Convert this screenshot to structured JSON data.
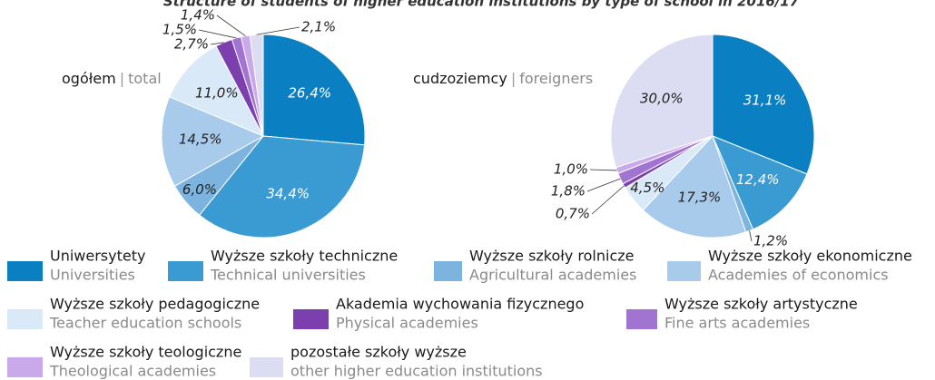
{
  "chart_data": [
    {
      "type": "pie",
      "title": "Structure of students of higher education institutions by type of school in 2016/17",
      "subtitle": "ogółem",
      "subtitle_en": "total",
      "categories": [
        "Uniwersytety",
        "Wyższe szkoły techniczne",
        "Wyższe szkoły rolnicze",
        "Wyższe szkoły ekonomiczne",
        "Wyższe szkoły pedagogiczne",
        "Akademia wychowania fizycznego",
        "Wyższe szkoły artystyczne",
        "Wyższe szkoły teologiczne",
        "pozostałe szkoły wyższe"
      ],
      "categories_en": [
        "Universities",
        "Technical universities",
        "Agricultural academies",
        "Academies of economics",
        "Teacher education schools",
        "Physical academies",
        "Fine arts academies",
        "Theological academies",
        "other higher education institutions"
      ],
      "colors": [
        "#0a80c2",
        "#3a9ad2",
        "#7cb3df",
        "#a9cbeb",
        "#d9e9f8",
        "#7b3fae",
        "#a274d2",
        "#c9a9e9",
        "#dcdcf3"
      ],
      "values": [
        26.4,
        34.4,
        6.0,
        14.5,
        11.0,
        2.7,
        1.5,
        1.4,
        2.1
      ],
      "value_labels": [
        "26,4%",
        "34,4%",
        "6,0%",
        "14,5%",
        "11,0%",
        "2,7%",
        "1,5%",
        "1,4%",
        "2,1%"
      ]
    },
    {
      "type": "pie",
      "subtitle": "cudzoziemcy",
      "subtitle_en": "foreigners",
      "values": [
        31.1,
        12.4,
        1.2,
        17.3,
        4.5,
        0.7,
        1.8,
        1.0,
        30.0
      ],
      "value_labels": [
        "31,1%",
        "12,4%",
        "1,2%",
        "17,3%",
        "4,5%",
        "0,7%",
        "1,8%",
        "1,0%",
        "30,0%"
      ]
    }
  ]
}
